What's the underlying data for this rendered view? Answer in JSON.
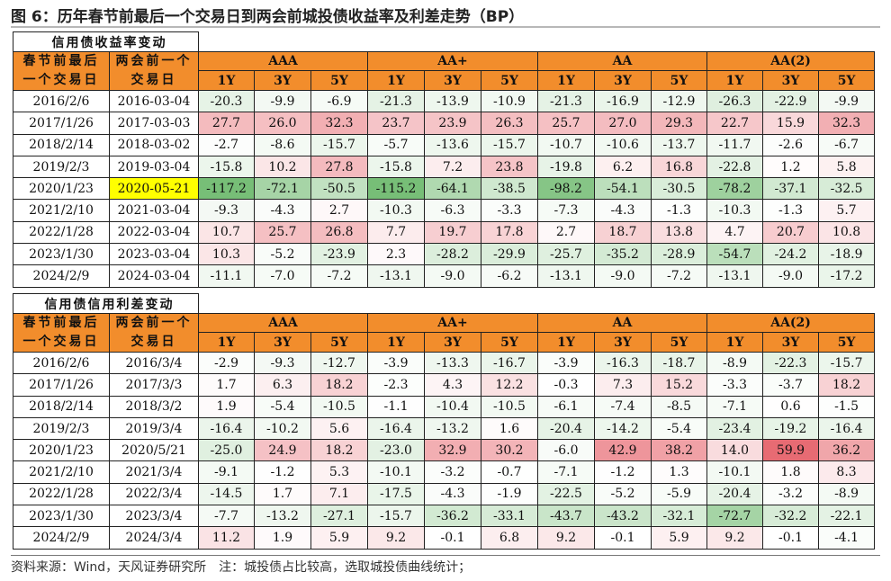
{
  "title": "图 6：历年春节前最后一个交易日到两会前城投债收益率及利差走势（BP）",
  "colors": {
    "header_bg": "#f28d2c",
    "highlight": "#ffff00",
    "positive": "#e0414b",
    "negative": "#4aa84a"
  },
  "tables": [
    {
      "caption": "信用债收益率变动",
      "col1_header": [
        "春节前最后",
        "一个交易日"
      ],
      "col2_header": [
        "两会前一个",
        "交易日"
      ],
      "groups": [
        "AAA",
        "AA+",
        "AA",
        "AA(2)"
      ],
      "tenors": [
        "1Y",
        "3Y",
        "5Y"
      ],
      "rows": [
        {
          "d1": "2016/2/6",
          "d2": "2016-03-04",
          "v": [
            "-20.3",
            "-9.9",
            "-6.9",
            "-21.3",
            "-13.9",
            "-10.9",
            "-21.3",
            "-16.9",
            "-12.9",
            "-26.3",
            "-22.9",
            "-9.9"
          ]
        },
        {
          "d1": "2017/1/26",
          "d2": "2017-03-03",
          "v": [
            "27.7",
            "26.0",
            "32.3",
            "23.7",
            "23.9",
            "26.3",
            "25.7",
            "27.0",
            "29.3",
            "22.7",
            "15.9",
            "32.3"
          ]
        },
        {
          "d1": "2018/2/14",
          "d2": "2018-03-02",
          "v": [
            "-2.7",
            "-8.6",
            "-15.7",
            "-5.7",
            "-13.6",
            "-15.7",
            "-10.7",
            "-10.6",
            "-13.7",
            "-11.7",
            "-2.6",
            "-6.7"
          ]
        },
        {
          "d1": "2019/2/3",
          "d2": "2019-03-04",
          "v": [
            "-15.8",
            "10.2",
            "27.8",
            "-15.8",
            "7.2",
            "23.8",
            "-19.8",
            "6.2",
            "16.8",
            "-22.8",
            "1.2",
            "5.8"
          ]
        },
        {
          "d1": "2020/1/23",
          "d2": "2020-05-21",
          "highlight": true,
          "v": [
            "-117.2",
            "-72.1",
            "-50.5",
            "-115.2",
            "-64.1",
            "-38.5",
            "-98.2",
            "-54.1",
            "-30.5",
            "-78.2",
            "-37.1",
            "-32.5"
          ]
        },
        {
          "d1": "2021/2/10",
          "d2": "2021-03-04",
          "v": [
            "-9.3",
            "-4.3",
            "2.7",
            "-10.3",
            "-6.3",
            "-3.3",
            "-7.3",
            "-4.3",
            "-1.3",
            "-10.3",
            "-1.3",
            "5.7"
          ]
        },
        {
          "d1": "2022/1/28",
          "d2": "2022-03-04",
          "v": [
            "10.7",
            "25.7",
            "26.8",
            "7.7",
            "19.7",
            "17.8",
            "2.7",
            "18.7",
            "13.8",
            "4.7",
            "20.7",
            "10.8"
          ]
        },
        {
          "d1": "2023/1/30",
          "d2": "2023-03-04",
          "v": [
            "10.3",
            "-5.2",
            "-23.9",
            "2.3",
            "-28.2",
            "-29.9",
            "-25.7",
            "-35.2",
            "-28.9",
            "-54.7",
            "-24.2",
            "-18.9"
          ]
        },
        {
          "d1": "2024/2/9",
          "d2": "2024-03-04",
          "v": [
            "-11.1",
            "-7.0",
            "-7.2",
            "-13.1",
            "-9.0",
            "-6.2",
            "-13.1",
            "-9.0",
            "-7.2",
            "-13.1",
            "-9.0",
            "-17.2"
          ]
        }
      ]
    },
    {
      "caption": "信用债信用利差变动",
      "col1_header": [
        "春节前最后",
        "一个交易日"
      ],
      "col2_header": [
        "两会前一个",
        "交易日"
      ],
      "groups": [
        "AAA",
        "AA+",
        "AA",
        "AA(2)"
      ],
      "tenors": [
        "1Y",
        "3Y",
        "5Y"
      ],
      "rows": [
        {
          "d1": "2016/2/6",
          "d2": "2016/3/4",
          "v": [
            "-2.9",
            "-9.3",
            "-12.7",
            "-3.9",
            "-13.3",
            "-16.7",
            "-3.9",
            "-16.3",
            "-18.7",
            "-8.9",
            "-22.3",
            "-15.7"
          ]
        },
        {
          "d1": "2017/1/26",
          "d2": "2017/3/3",
          "v": [
            "1.7",
            "6.3",
            "18.2",
            "-2.3",
            "4.3",
            "12.2",
            "-0.3",
            "7.3",
            "15.2",
            "-3.3",
            "-3.7",
            "18.2"
          ]
        },
        {
          "d1": "2018/2/14",
          "d2": "2018/3/2",
          "v": [
            "1.9",
            "-5.4",
            "-10.5",
            "-1.1",
            "-10.4",
            "-10.5",
            "-6.1",
            "-7.4",
            "-8.5",
            "-7.1",
            "0.6",
            "-1.5"
          ]
        },
        {
          "d1": "2019/2/3",
          "d2": "2019/3/4",
          "v": [
            "-16.4",
            "-10.2",
            "5.6",
            "-16.4",
            "-13.2",
            "1.6",
            "-20.4",
            "-14.2",
            "-5.4",
            "-23.4",
            "-19.2",
            "-16.4"
          ]
        },
        {
          "d1": "2020/1/23",
          "d2": "2020/5/21",
          "v": [
            "-25.0",
            "24.9",
            "18.2",
            "-23.0",
            "32.9",
            "30.2",
            "-6.0",
            "42.9",
            "38.2",
            "14.0",
            "59.9",
            "36.2"
          ]
        },
        {
          "d1": "2021/2/10",
          "d2": "2021/3/4",
          "v": [
            "-9.1",
            "-1.2",
            "5.3",
            "-10.1",
            "-3.2",
            "-0.7",
            "-7.1",
            "-1.2",
            "1.3",
            "-10.1",
            "1.8",
            "8.3"
          ]
        },
        {
          "d1": "2022/1/28",
          "d2": "2022/3/4",
          "v": [
            "-14.5",
            "1.7",
            "7.1",
            "-17.5",
            "-4.3",
            "-1.9",
            "-22.5",
            "-5.2",
            "-5.9",
            "-20.4",
            "-3.2",
            "-8.9"
          ]
        },
        {
          "d1": "2023/1/30",
          "d2": "2023/3/4",
          "v": [
            "-7.7",
            "-13.2",
            "-27.1",
            "-15.7",
            "-36.2",
            "-33.1",
            "-43.7",
            "-43.2",
            "-32.1",
            "-72.7",
            "-32.2",
            "-22.1"
          ]
        },
        {
          "d1": "2024/2/9",
          "d2": "2024/3/4",
          "v": [
            "11.2",
            "1.9",
            "5.9",
            "9.2",
            "-0.1",
            "6.8",
            "9.2",
            "-0.1",
            "5.9",
            "9.2",
            "-0.1",
            "-4.1"
          ]
        }
      ]
    }
  ],
  "footer": "资料来源：Wind，天风证券研究所　注：城投债占比较高，选取城投债曲线统计；"
}
